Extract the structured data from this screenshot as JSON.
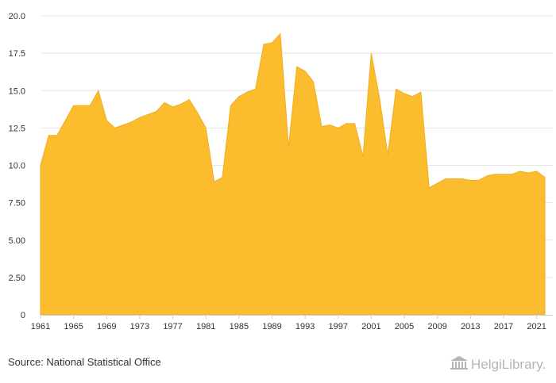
{
  "chart_data": {
    "type": "area",
    "x": [
      1961,
      1962,
      1963,
      1964,
      1965,
      1966,
      1967,
      1968,
      1969,
      1970,
      1971,
      1972,
      1973,
      1974,
      1975,
      1976,
      1977,
      1978,
      1979,
      1980,
      1981,
      1982,
      1983,
      1984,
      1985,
      1986,
      1987,
      1988,
      1989,
      1990,
      1991,
      1992,
      1993,
      1994,
      1995,
      1996,
      1997,
      1998,
      1999,
      2000,
      2001,
      2002,
      2003,
      2004,
      2005,
      2006,
      2007,
      2008,
      2009,
      2010,
      2011,
      2012,
      2013,
      2014,
      2015,
      2016,
      2017,
      2018,
      2019,
      2020,
      2021,
      2022
    ],
    "series": [
      {
        "values": [
          10.0,
          12.0,
          12.0,
          13.0,
          14.0,
          14.0,
          14.0,
          15.0,
          13.0,
          12.5,
          12.7,
          12.9,
          13.2,
          13.4,
          13.6,
          14.2,
          13.9,
          14.1,
          14.4,
          13.5,
          12.5,
          8.9,
          9.2,
          14.0,
          14.6,
          14.9,
          15.1,
          18.1,
          18.2,
          18.8,
          11.2,
          16.6,
          16.3,
          15.6,
          12.6,
          12.7,
          12.5,
          12.8,
          12.8,
          10.6,
          17.5,
          14.5,
          10.7,
          15.1,
          14.8,
          14.6,
          14.9,
          8.5,
          8.8,
          9.1,
          9.1,
          9.1,
          9.0,
          9.0,
          9.3,
          9.4,
          9.4,
          9.4,
          9.6,
          9.5,
          9.6,
          9.2
        ],
        "color": "#fbbc2e"
      }
    ],
    "xticks": [
      "1961",
      "1965",
      "1969",
      "1973",
      "1977",
      "1981",
      "1985",
      "1989",
      "1993",
      "1997",
      "2001",
      "2005",
      "2009",
      "2013",
      "2017",
      "2021"
    ],
    "yticks": [
      "0",
      "2.50",
      "5.00",
      "7.50",
      "10.0",
      "12.5",
      "15.0",
      "17.5",
      "20.0"
    ],
    "ylim": [
      0,
      20
    ],
    "xlim": [
      1960.5,
      2022.5
    ],
    "grid": true,
    "title": "",
    "xlabel": "",
    "ylabel": ""
  },
  "footer": {
    "source": "Source: National Statistical Office",
    "brand": "HelgiLibrary."
  }
}
